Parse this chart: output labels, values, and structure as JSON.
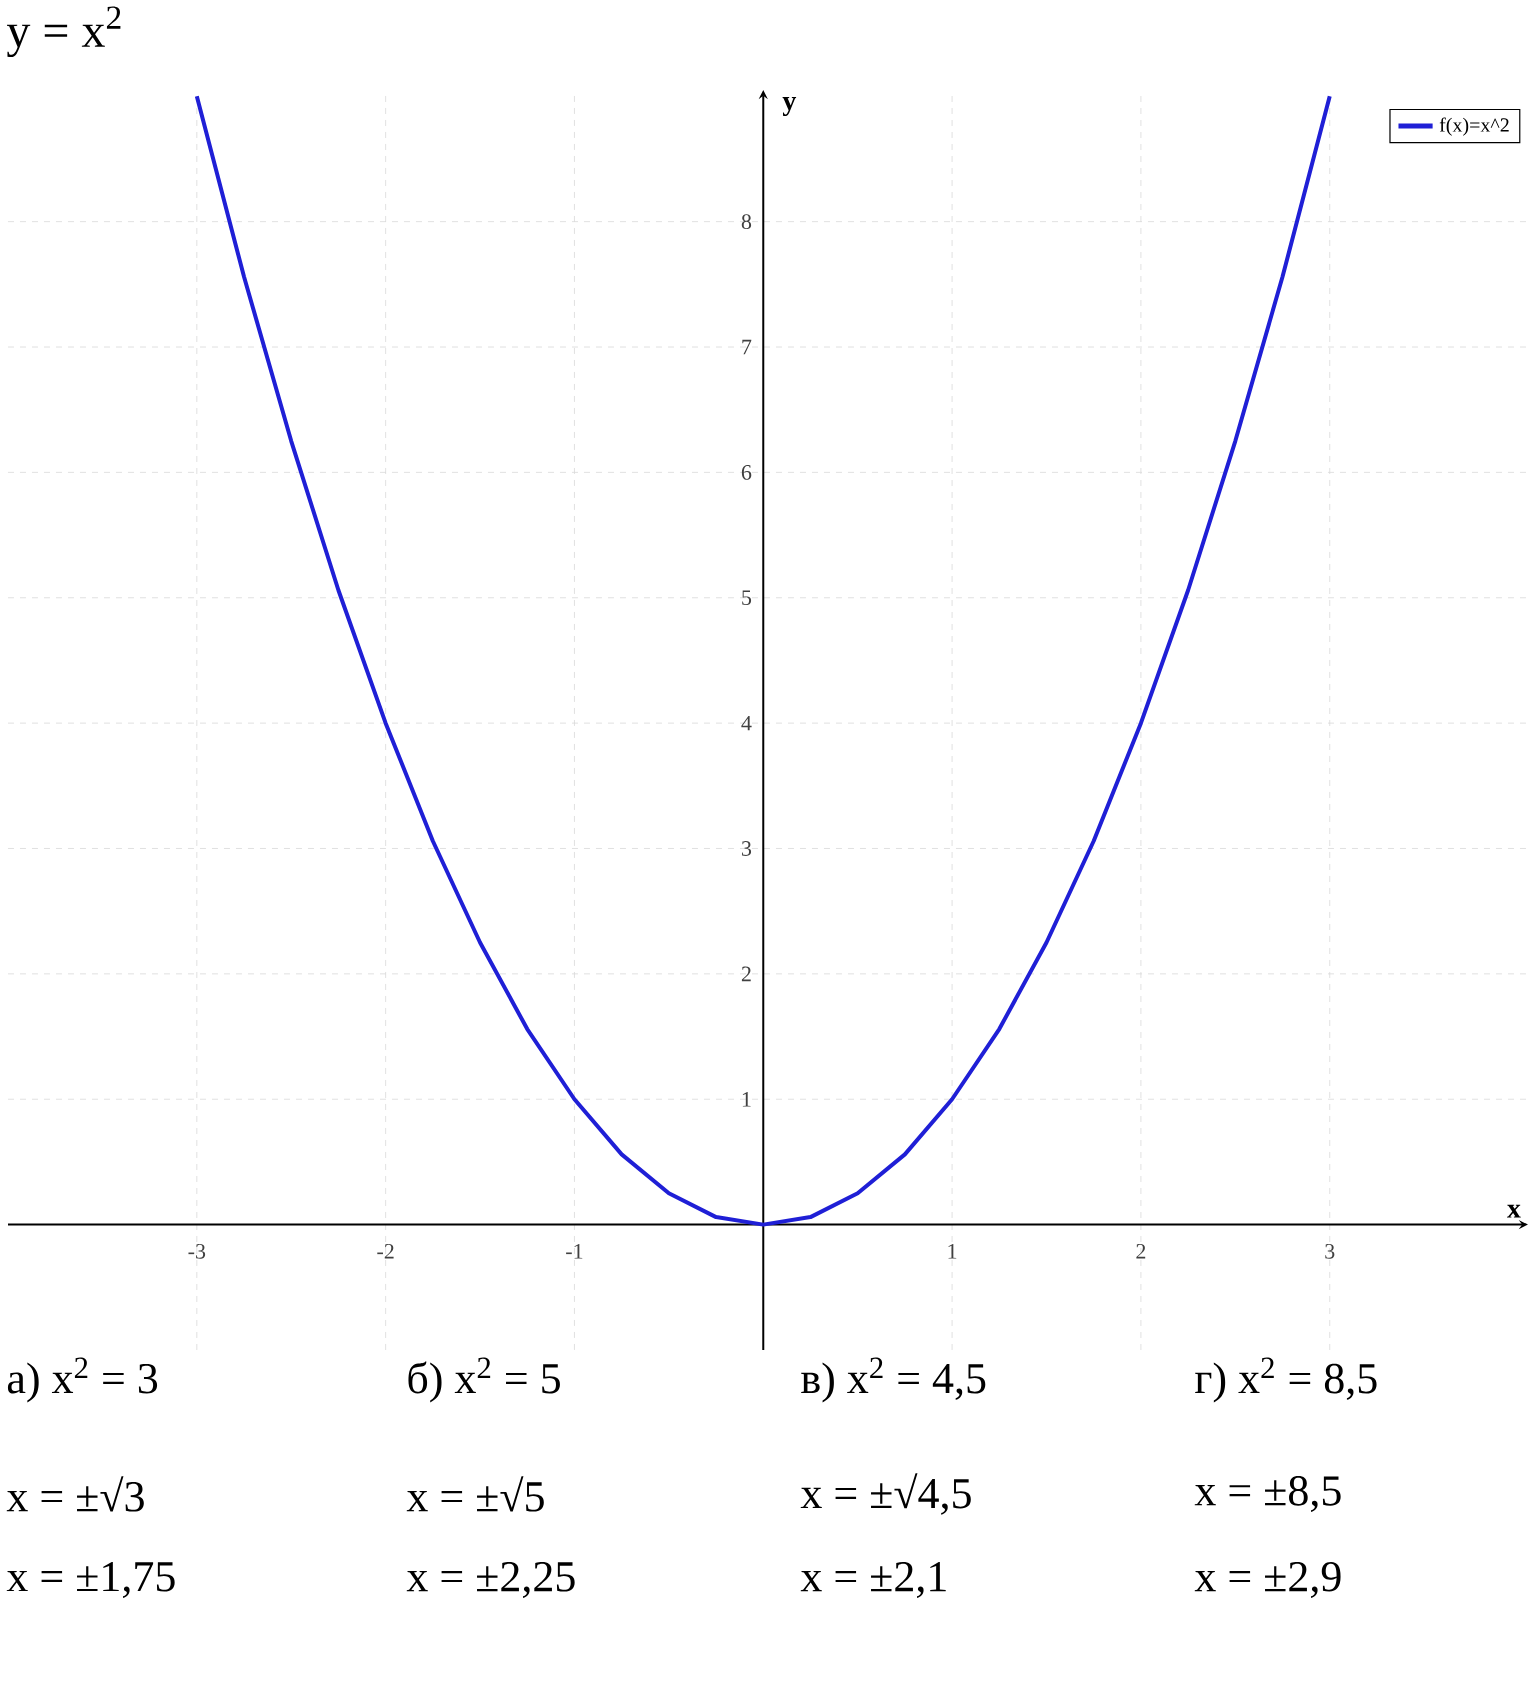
{
  "chart_data": {
    "type": "line",
    "title": "y = x$^{2}$",
    "xlabel": "x",
    "ylabel": "y",
    "x": [
      -3,
      -2.75,
      -2.5,
      -2.25,
      -2,
      -1.75,
      -1.5,
      -1.25,
      -1,
      -0.75,
      -0.5,
      -0.25,
      0,
      0.25,
      0.5,
      0.75,
      1,
      1.25,
      1.5,
      1.75,
      2,
      2.25,
      2.5,
      2.75,
      3
    ],
    "series": [
      {
        "name": "f(x)=x^2",
        "color": "#1f1fd6",
        "values": [
          9,
          7.56,
          6.25,
          5.06,
          4,
          3.06,
          2.25,
          1.56,
          1,
          0.56,
          0.25,
          0.06,
          0,
          0.06,
          0.25,
          0.56,
          1,
          1.56,
          2.25,
          3.06,
          4,
          5.06,
          6.25,
          7.56,
          9
        ]
      }
    ],
    "xlim": [
      -4,
      4.05
    ],
    "ylim": [
      -1,
      9.05
    ],
    "xticks": [
      -3,
      -2,
      -1,
      1,
      2,
      3
    ],
    "yticks": [
      1,
      2,
      3,
      4,
      5,
      6,
      7,
      8
    ],
    "grid": true,
    "legend": "top right",
    "annotations": [
      "а) x$^{2}$ = 3",
      "б) x$^{2}$ = 5",
      "в) x$^{2}$ = 4,5",
      "г) x$^{2}$ = 8,5",
      "x = ±√3",
      "x = ±√5",
      "x = ±√4,5",
      "x = ±8,5",
      "x = ±1,75",
      "x = ±2,25",
      "x = ±2,1",
      "x = ±2,9"
    ]
  }
}
